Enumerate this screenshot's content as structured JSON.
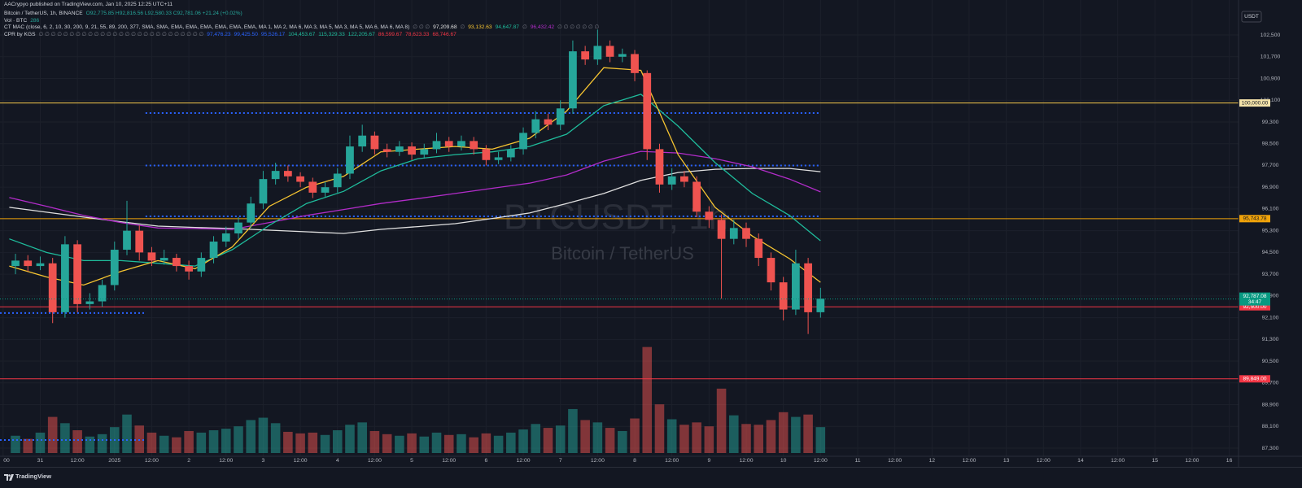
{
  "header": {
    "author_line": "AACrypyo published on TradingView.com, Jan 10, 2025 12:25 UTC+11",
    "symbol": "Bitcoin / TetherUS, 1h, BINANCE",
    "ohlc": "O92,775.85 H92,816.56 L92,580.33 C92,781.06 +21.24 (+0.02%)",
    "vol_label": "Vol · BTC",
    "vol_value": "286",
    "ma_label": "CT MAC (close, 6, 2, 10, 30, 200, 9, 21, 55, 89, 200, 377, SMA, SMA, EMA, EMA, EMA, EMA, EMA, EMA, MA 1, MA 2, MA 6, MA 3, MA 5, MA 3, MA 5, MA 6, MA 6, MA 8)",
    "ma_values": [
      {
        "text": "∅ ∅ ∅",
        "color": "#787b86"
      },
      {
        "text": "97,209.68",
        "color": "#e0e0e0"
      },
      {
        "text": "∅",
        "color": "#787b86"
      },
      {
        "text": "93,132.63",
        "color": "#f7c531"
      },
      {
        "text": "94,647.87",
        "color": "#1fbc9c"
      },
      {
        "text": "∅",
        "color": "#787b86"
      },
      {
        "text": "96,432.42",
        "color": "#b22cc9"
      },
      {
        "text": "∅ ∅ ∅ ∅ ∅ ∅ ∅",
        "color": "#787b86"
      }
    ],
    "cpr_label": "CPR by KGS",
    "cpr_values": [
      {
        "text": "∅ ∅ ∅ ∅ ∅ ∅ ∅ ∅ ∅ ∅ ∅ ∅ ∅ ∅ ∅ ∅ ∅ ∅ ∅ ∅ ∅ ∅ ∅ ∅ ∅ ∅ ∅",
        "color": "#787b86"
      },
      {
        "text": "97,476.23",
        "color": "#2962ff"
      },
      {
        "text": "99,425.50",
        "color": "#2962ff"
      },
      {
        "text": "95,526.17",
        "color": "#2962ff"
      },
      {
        "text": "104,453.67",
        "color": "#1fbc9c"
      },
      {
        "text": "115,329.33",
        "color": "#1fbc9c"
      },
      {
        "text": "122,205.67",
        "color": "#1fbc9c"
      },
      {
        "text": "86,599.67",
        "color": "#f23645"
      },
      {
        "text": "78,623.33",
        "color": "#f23645"
      },
      {
        "text": "68,746.67",
        "color": "#f23645"
      }
    ],
    "currency": "USDT"
  },
  "chart_data": {
    "type": "candlestick",
    "watermark_symbol": "BTCUSDT, 1h",
    "watermark_name": "Bitcoin / TetherUS",
    "xlim": [
      -13,
      387
    ],
    "ylim": [
      87000,
      103190
    ],
    "volume_lim": [
      0,
      14500
    ],
    "grid": true,
    "up_color": "#26a69a",
    "down_color": "#ef5350",
    "xticks": [
      {
        "value": -12,
        "label": "00"
      },
      {
        "value": 0,
        "label": "31"
      },
      {
        "value": 12,
        "label": "12:00"
      },
      {
        "value": 24,
        "label": "2025"
      },
      {
        "value": 36,
        "label": "12:00"
      },
      {
        "value": 48,
        "label": "2"
      },
      {
        "value": 60,
        "label": "12:00"
      },
      {
        "value": 72,
        "label": "3"
      },
      {
        "value": 84,
        "label": "12:00"
      },
      {
        "value": 96,
        "label": "4"
      },
      {
        "value": 108,
        "label": "12:00"
      },
      {
        "value": 120,
        "label": "5"
      },
      {
        "value": 132,
        "label": "12:00"
      },
      {
        "value": 144,
        "label": "6"
      },
      {
        "value": 156,
        "label": "12:00"
      },
      {
        "value": 168,
        "label": "7"
      },
      {
        "value": 180,
        "label": "12:00"
      },
      {
        "value": 192,
        "label": "8"
      },
      {
        "value": 204,
        "label": "12:00"
      },
      {
        "value": 216,
        "label": "9"
      },
      {
        "value": 228,
        "label": "12:00"
      },
      {
        "value": 240,
        "label": "10"
      },
      {
        "value": 252,
        "label": "12:00"
      },
      {
        "value": 264,
        "label": "11"
      },
      {
        "value": 276,
        "label": "12:00"
      },
      {
        "value": 288,
        "label": "12"
      },
      {
        "value": 300,
        "label": "12:00"
      },
      {
        "value": 312,
        "label": "13"
      },
      {
        "value": 324,
        "label": "12:00"
      },
      {
        "value": 336,
        "label": "14"
      },
      {
        "value": 348,
        "label": "12:00"
      },
      {
        "value": 360,
        "label": "15"
      },
      {
        "value": 372,
        "label": "12:00"
      },
      {
        "value": 384,
        "label": "16"
      }
    ],
    "yticks": [
      {
        "value": 87300,
        "label": "87,300"
      },
      {
        "value": 88100,
        "label": "88,100"
      },
      {
        "value": 88900,
        "label": "88,900"
      },
      {
        "value": 89700,
        "label": "89,700"
      },
      {
        "value": 90500,
        "label": "90,500"
      },
      {
        "value": 91300,
        "label": "91,300"
      },
      {
        "value": 92100,
        "label": "92,100"
      },
      {
        "value": 92900,
        "label": "92,900"
      },
      {
        "value": 93700,
        "label": "93,700"
      },
      {
        "value": 94500,
        "label": "94,500"
      },
      {
        "value": 95300,
        "label": "95,300"
      },
      {
        "value": 96100,
        "label": "96,100"
      },
      {
        "value": 96900,
        "label": "96,900"
      },
      {
        "value": 97700,
        "label": "97,700"
      },
      {
        "value": 98500,
        "label": "98,500"
      },
      {
        "value": 99300,
        "label": "99,300"
      },
      {
        "value": 100100,
        "label": "100,100"
      },
      {
        "value": 100900,
        "label": "100,900"
      },
      {
        "value": 101700,
        "label": "101,700"
      },
      {
        "value": 102500,
        "label": "102,500"
      }
    ],
    "candles": {
      "x": [
        -10,
        -6,
        -2,
        2,
        6,
        10,
        14,
        18,
        22,
        26,
        30,
        34,
        38,
        42,
        46,
        50,
        54,
        58,
        62,
        66,
        70,
        74,
        78,
        82,
        86,
        90,
        94,
        98,
        102,
        106,
        110,
        114,
        118,
        122,
        126,
        130,
        134,
        138,
        142,
        146,
        150,
        154,
        158,
        162,
        166,
        170,
        174,
        178,
        182,
        186,
        190,
        194,
        198,
        202,
        206,
        210,
        214,
        218,
        222,
        226,
        230,
        234,
        238,
        242,
        246,
        250
      ],
      "open": [
        94000,
        94200,
        94000,
        94100,
        92300,
        94800,
        92600,
        92700,
        93300,
        94600,
        95300,
        94500,
        94200,
        94300,
        94000,
        93800,
        94300,
        94900,
        95200,
        95600,
        96300,
        97200,
        97500,
        97300,
        97100,
        96700,
        96900,
        97400,
        98400,
        98800,
        98300,
        98200,
        98400,
        98100,
        98300,
        98600,
        98400,
        98600,
        98300,
        97900,
        98000,
        98300,
        98900,
        99400,
        99200,
        99800,
        101900,
        101600,
        102100,
        101700,
        101800,
        101100,
        98300,
        97000,
        97300,
        97100,
        96000,
        95700,
        95000,
        95400,
        95000,
        94300,
        93400,
        92400,
        94100,
        92300
      ],
      "high": [
        94450,
        94400,
        94350,
        94300,
        95100,
        94950,
        93000,
        93500,
        94900,
        96400,
        95500,
        94700,
        94600,
        94450,
        94200,
        94500,
        95100,
        95450,
        95800,
        96550,
        97500,
        97800,
        97700,
        97450,
        97250,
        97100,
        97600,
        98800,
        99200,
        98950,
        98500,
        98600,
        98550,
        98500,
        98900,
        98750,
        98800,
        98750,
        98450,
        98200,
        98450,
        99100,
        99700,
        99600,
        100100,
        102300,
        102100,
        102700,
        102300,
        102000,
        101950,
        101200,
        98500,
        97600,
        97500,
        97300,
        96200,
        95900,
        95700,
        95600,
        95200,
        94500,
        93600,
        94600,
        94300,
        93200
      ],
      "low": [
        93700,
        93800,
        93850,
        91900,
        92100,
        92300,
        92400,
        92500,
        93100,
        94400,
        94200,
        94000,
        94050,
        93800,
        93500,
        93600,
        94100,
        94700,
        95000,
        95400,
        96100,
        97000,
        97100,
        96900,
        96500,
        96550,
        96700,
        97200,
        98200,
        98100,
        98000,
        98050,
        97900,
        97950,
        98150,
        98200,
        98250,
        98100,
        97700,
        97750,
        97850,
        98100,
        98700,
        99000,
        99000,
        99600,
        101400,
        101400,
        101500,
        101500,
        100800,
        97900,
        96700,
        96800,
        96900,
        95800,
        95400,
        92800,
        94800,
        94700,
        94000,
        93100,
        92000,
        92200,
        91500,
        92100
      ],
      "close": [
        94200,
        94000,
        94100,
        92300,
        94800,
        92600,
        92700,
        93300,
        94600,
        95300,
        94500,
        94200,
        94300,
        94000,
        93800,
        94300,
        94900,
        95200,
        95600,
        96300,
        97200,
        97500,
        97300,
        97100,
        96700,
        96900,
        97400,
        98400,
        98800,
        98300,
        98200,
        98400,
        98100,
        98300,
        98600,
        98400,
        98600,
        98300,
        97900,
        98000,
        98300,
        98900,
        99400,
        99200,
        99800,
        101900,
        101600,
        102100,
        101700,
        101800,
        101100,
        98300,
        97000,
        97300,
        97100,
        96000,
        95700,
        95000,
        95400,
        95000,
        94300,
        93400,
        92400,
        94100,
        92300,
        92800
      ],
      "volume": [
        2200,
        1800,
        2600,
        4600,
        3800,
        2900,
        2100,
        2400,
        3300,
        4900,
        3500,
        2600,
        2200,
        2000,
        2800,
        2600,
        2900,
        3100,
        3400,
        4200,
        4500,
        3800,
        2700,
        2500,
        2600,
        2300,
        2900,
        3600,
        3900,
        2800,
        2400,
        2200,
        2500,
        2100,
        2600,
        2300,
        2400,
        2000,
        2500,
        2200,
        2600,
        3000,
        3700,
        3200,
        3500,
        5600,
        4200,
        3900,
        3200,
        2800,
        4400,
        13500,
        6200,
        4300,
        3600,
        3900,
        3400,
        8200,
        4800,
        3700,
        3600,
        4200,
        5200,
        4600,
        4900,
        3300
      ]
    },
    "ma_x": [
      -10,
      2,
      14,
      26,
      38,
      50,
      62,
      74,
      86,
      98,
      110,
      122,
      134,
      146,
      158,
      170,
      182,
      194,
      206,
      218,
      230,
      242,
      252
    ],
    "ma_lines": [
      {
        "color": "#e0e0e0",
        "values": [
          96160,
          95980,
          95800,
          95630,
          95470,
          95420,
          95380,
          95320,
          95260,
          95200,
          95350,
          95450,
          95560,
          95750,
          95950,
          96300,
          96670,
          97150,
          97440,
          97560,
          97590,
          97590,
          97470
        ]
      },
      {
        "color": "#b22cc9",
        "values": [
          96520,
          96200,
          95860,
          95600,
          95400,
          95380,
          95350,
          95600,
          95860,
          96080,
          96300,
          96480,
          96670,
          96860,
          97050,
          97350,
          97860,
          98220,
          98160,
          97950,
          97650,
          97200,
          96730
        ]
      },
      {
        "color": "#1fbc9c",
        "values": [
          95000,
          94500,
          94200,
          94200,
          94100,
          94000,
          94600,
          95500,
          96300,
          96750,
          97500,
          97950,
          98100,
          98200,
          98400,
          98850,
          99900,
          100320,
          99150,
          97800,
          96670,
          95860,
          94930
        ]
      },
      {
        "color": "#f7c531",
        "values": [
          94000,
          93600,
          93300,
          93800,
          94200,
          93900,
          94700,
          96200,
          96900,
          97300,
          98200,
          98300,
          98400,
          98300,
          98700,
          99700,
          101300,
          101200,
          98100,
          96150,
          95100,
          94270,
          93400
        ]
      }
    ],
    "cpr_levels": [
      {
        "value": 99630,
        "from": 34,
        "to": 252
      },
      {
        "value": 97700,
        "from": 34,
        "to": 252
      },
      {
        "value": 95830,
        "from": 34,
        "to": 252
      },
      {
        "value": 92270,
        "from": -13,
        "to": 34
      },
      {
        "value": 87600,
        "from": -13,
        "to": 34
      }
    ],
    "cpr_color": "#2962ff",
    "levels": [
      {
        "value": 100000,
        "label": "100,000.00",
        "color": "#f5c84c",
        "tag_color": "#f3e2a9",
        "text_color": "#131722"
      },
      {
        "value": 95743.78,
        "label": "95,743.78",
        "color": "#f0a30a",
        "tag_color": "#f0a30a",
        "text_color": "#131722"
      },
      {
        "value": 92500,
        "label": "92,500.00",
        "color": "#f23645",
        "tag_color": "#f23645",
        "text_color": "#ffffff"
      },
      {
        "value": 89849,
        "label": "89,849.00",
        "color": "#f23645",
        "tag_color": "#f23645",
        "text_color": "#ffffff"
      }
    ],
    "last_price": {
      "value": 92787.08,
      "label": "92,787.08",
      "countdown": "34:47",
      "color": "#089981"
    }
  },
  "footer": {
    "brand": "TradingView"
  }
}
